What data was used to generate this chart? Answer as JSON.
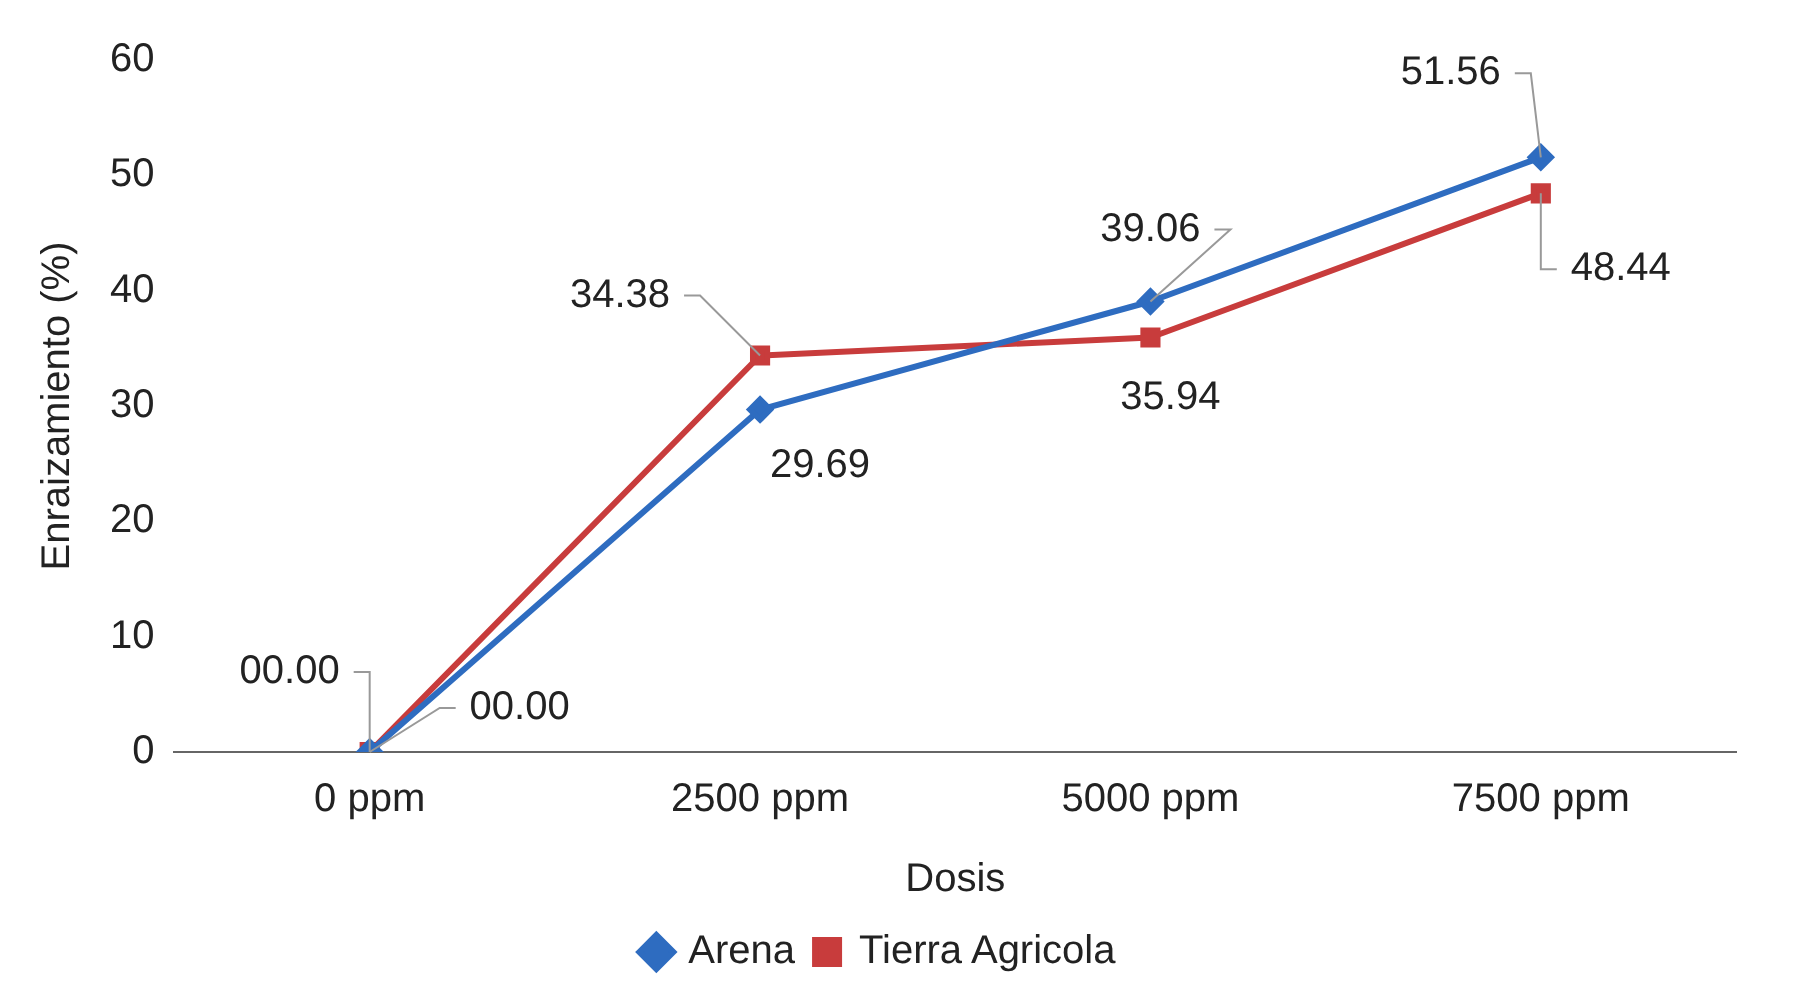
{
  "chart_data": {
    "type": "line",
    "xlabel": "Dosis",
    "ylabel": "Enraizamiento (%)",
    "categories": [
      "0 ppm",
      "2500 ppm",
      "5000 ppm",
      "7500 ppm"
    ],
    "series": [
      {
        "name": "Arena",
        "color": "#2e6cc0",
        "marker": "diamond",
        "values": [
          0,
          29.69,
          39.06,
          51.56
        ],
        "value_labels": [
          "00.00",
          "29.69",
          "39.06",
          "51.56"
        ]
      },
      {
        "name": "Tierra Agricola",
        "color": "#c83c3c",
        "marker": "square",
        "values": [
          0,
          34.38,
          35.94,
          48.44
        ],
        "value_labels": [
          "00.00",
          "34.38",
          "35.94",
          "48.44"
        ]
      }
    ],
    "ylim": [
      0,
      60
    ],
    "yticks": [
      0,
      10,
      20,
      30,
      40,
      50,
      60
    ],
    "grid": false,
    "legend": "bottom",
    "line_style": "solid"
  }
}
